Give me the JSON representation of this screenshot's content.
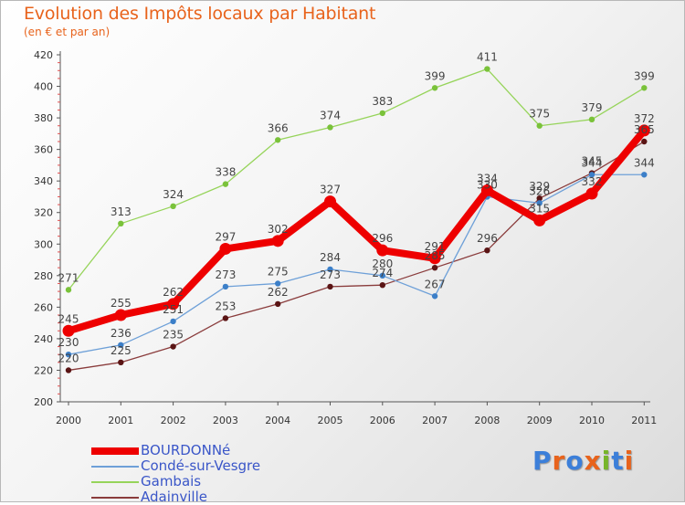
{
  "title": "Evolution des Impôts locaux par Habitant",
  "subtitle": "(en € et par an)",
  "logo": {
    "text": "Proxiti",
    "colors": [
      "#3c7fd9",
      "#e8631c",
      "#3c7fd9",
      "#e8631c",
      "#77b52a",
      "#3c7fd9",
      "#e8631c"
    ]
  },
  "chart_data": {
    "type": "line",
    "title": "Evolution des Impôts locaux par Habitant",
    "subtitle": "(en € et par an)",
    "xlabel": "",
    "ylabel": "",
    "ylim": [
      200,
      420
    ],
    "yticks": [
      200,
      220,
      240,
      260,
      280,
      300,
      320,
      340,
      360,
      380,
      400,
      420
    ],
    "categories": [
      "2000",
      "2001",
      "2002",
      "2003",
      "2004",
      "2005",
      "2006",
      "2007",
      "2008",
      "2009",
      "2010",
      "2011"
    ],
    "series": [
      {
        "name": "Gambais",
        "color": "#96d45a",
        "marker": "#7ac23a",
        "values": [
          271,
          313,
          324,
          338,
          366,
          374,
          383,
          399,
          411,
          375,
          379,
          399
        ]
      },
      {
        "name": "Adainville",
        "color": "#8a3c3c",
        "marker": "#5a1414",
        "values": [
          220,
          225,
          235,
          253,
          262,
          273,
          274,
          285,
          296,
          329,
          345,
          365
        ]
      },
      {
        "name": "Condé-sur-Vesgre",
        "color": "#6ea0d8",
        "marker": "#3c7fc8",
        "values": [
          230,
          236,
          251,
          273,
          275,
          284,
          280,
          267,
          330,
          326,
          344,
          344
        ]
      },
      {
        "name": "BOURDONNé",
        "color": "#ee0000",
        "marker": "#ee0000",
        "values": [
          245,
          255,
          262,
          297,
          302,
          327,
          296,
          291,
          334,
          315,
          332,
          372
        ]
      }
    ],
    "legend": [
      "BOURDONNé",
      "Condé-sur-Vesgre",
      "Gambais",
      "Adainville"
    ],
    "legend_position": "bottom-left",
    "grid": false
  }
}
